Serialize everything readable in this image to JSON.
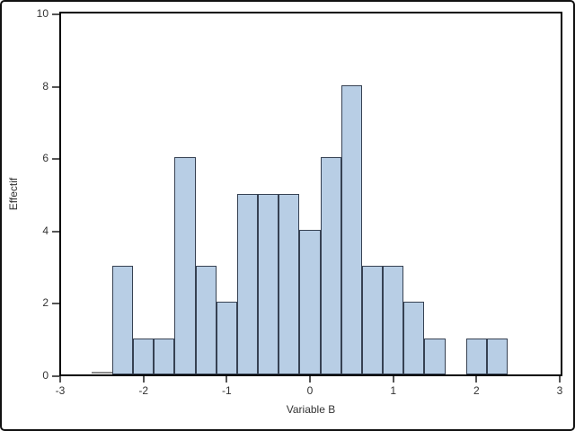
{
  "chart_data": {
    "type": "bar",
    "subtype": "histogram",
    "xlabel": "Variable B",
    "ylabel": "Effectif",
    "xlim": [
      -3,
      3
    ],
    "ylim": [
      0,
      10
    ],
    "x_ticks": [
      -3,
      -2,
      -1,
      0,
      1,
      2,
      3
    ],
    "y_ticks": [
      0,
      2,
      4,
      6,
      8,
      10
    ],
    "bin_width": 0.25,
    "grid": "off",
    "legend": "none",
    "bins": [
      {
        "midpoint": -2.5,
        "count": 0,
        "flat_outline": true
      },
      {
        "midpoint": -2.25,
        "count": 3
      },
      {
        "midpoint": -2.0,
        "count": 1
      },
      {
        "midpoint": -1.75,
        "count": 1
      },
      {
        "midpoint": -1.5,
        "count": 6
      },
      {
        "midpoint": -1.25,
        "count": 3
      },
      {
        "midpoint": -1.0,
        "count": 2
      },
      {
        "midpoint": -0.75,
        "count": 5
      },
      {
        "midpoint": -0.5,
        "count": 5
      },
      {
        "midpoint": -0.25,
        "count": 5
      },
      {
        "midpoint": 0.0,
        "count": 4
      },
      {
        "midpoint": 0.25,
        "count": 6
      },
      {
        "midpoint": 0.5,
        "count": 8
      },
      {
        "midpoint": 0.75,
        "count": 3
      },
      {
        "midpoint": 1.0,
        "count": 3
      },
      {
        "midpoint": 1.25,
        "count": 2
      },
      {
        "midpoint": 1.5,
        "count": 1
      },
      {
        "midpoint": 1.75,
        "count": 0
      },
      {
        "midpoint": 2.0,
        "count": 1
      },
      {
        "midpoint": 2.25,
        "count": 1
      }
    ],
    "colors": {
      "bar_fill": "#b8cee5",
      "bar_border": "#364152",
      "frame": "#000000",
      "tick": "#555555",
      "text": "#333333",
      "zero_outline": "#8c8c8c",
      "background": "#ffffff"
    }
  }
}
